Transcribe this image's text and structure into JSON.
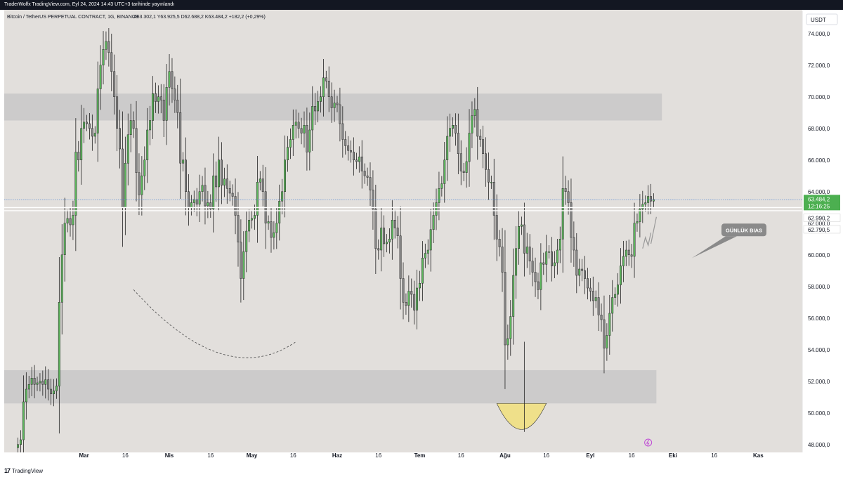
{
  "header": {
    "publish_line": "TraderWolfx TradingView.com, Eyl 24, 2024 14:43 UTC+3 tarihinde yayınlandı",
    "symbol_line": "Bitcoin / TetherUS PERPETUAL CONTRACT, 1G, BINANCE",
    "ohlc": {
      "open": "A63.302,1",
      "high": "Y63.925,5",
      "low": "D62.688,2",
      "close": "K63.484,2",
      "change": "+182,2 (+0,29%)"
    }
  },
  "currency_button": "USDT",
  "price_labels": {
    "last": "63.484,2",
    "countdown": "12:16:25",
    "line1": "62.990,2",
    "line2": "62.790,5"
  },
  "annotation": "GÜNLÜK BIAS",
  "footer": {
    "brand": "TradingView"
  },
  "colors": {
    "background": "#e2dfdc",
    "bull": "#5cb85c",
    "bear": "#888888",
    "zone": "#c8c8c8",
    "last_price": "#4caf50",
    "yellow_zone": "#efe08a"
  },
  "chart_data": {
    "type": "candlestick",
    "title": "Bitcoin / TetherUS PERPETUAL CONTRACT, 1G, BINANCE",
    "timeframe": "1D",
    "ylim": [
      47500,
      75500
    ],
    "y_ticks": [
      "74.000,0",
      "72.000,0",
      "70.000,0",
      "68.000,0",
      "66.000,0",
      "64.000,0",
      "62.000,0",
      "60.000,0",
      "58.000,0",
      "56.000,0",
      "54.000,0",
      "52.000,0",
      "50.000,0",
      "48.000,0"
    ],
    "x_ticks": [
      {
        "label": "Mar",
        "day": 29
      },
      {
        "label": "16",
        "day": 44
      },
      {
        "label": "Nis",
        "day": 60
      },
      {
        "label": "16",
        "day": 75
      },
      {
        "label": "May",
        "day": 90
      },
      {
        "label": "16",
        "day": 105
      },
      {
        "label": "Haz",
        "day": 121
      },
      {
        "label": "16",
        "day": 136
      },
      {
        "label": "Tem",
        "day": 151
      },
      {
        "label": "16",
        "day": 166
      },
      {
        "label": "Ağu",
        "day": 182
      },
      {
        "label": "16",
        "day": 197
      },
      {
        "label": "Eyl",
        "day": 213
      },
      {
        "label": "16",
        "day": 228
      },
      {
        "label": "Eki",
        "day": 243
      },
      {
        "label": "16",
        "day": 258
      },
      {
        "label": "Kas",
        "day": 274
      }
    ],
    "x_range_days": [
      0,
      290
    ],
    "first_day": 5,
    "closes": [
      48000,
      48300,
      50700,
      51500,
      51800,
      52200,
      51800,
      51900,
      52000,
      51800,
      52100,
      51500,
      51200,
      51400,
      51700,
      57000,
      60000,
      62000,
      62300,
      61900,
      62500,
      66500,
      66000,
      68000,
      68400,
      68300,
      68000,
      67500,
      67700,
      70500,
      72000,
      73000,
      73500,
      72800,
      71600,
      70000,
      68000,
      66700,
      63000,
      65800,
      67600,
      68500,
      68000,
      65200,
      63800,
      65000,
      66000,
      67900,
      68500,
      70200,
      69700,
      70000,
      69800,
      68500,
      70600,
      71600,
      70500,
      69800,
      69000,
      65800,
      66000,
      64000,
      63000,
      63300,
      63500,
      63200,
      64000,
      64400,
      63100,
      63300,
      62900,
      65000,
      64300,
      66000,
      64400,
      64800,
      64200,
      63900,
      63700,
      62500,
      60800,
      58500,
      60200,
      61500,
      62200,
      62300,
      62500,
      64600,
      64800,
      64000,
      62000,
      62100,
      61100,
      61400,
      62000,
      63400,
      64000,
      66000,
      66800,
      67300,
      68200,
      68400,
      68000,
      67700,
      68200,
      66500,
      67900,
      69400,
      69100,
      69700,
      70000,
      71200,
      71000,
      70000,
      69300,
      69600,
      69500,
      68300,
      67300,
      66900,
      66600,
      66500,
      66000,
      65900,
      66200,
      65300,
      65000,
      64900,
      64100,
      62900,
      60400,
      60300,
      61700,
      60700,
      60800,
      61000,
      62200,
      61700,
      61200,
      58500,
      57000,
      56800,
      57700,
      57500,
      56500,
      57900,
      58200,
      59800,
      60100,
      60300,
      61600,
      62500,
      63300,
      64200,
      64500,
      66000,
      67500,
      68000,
      68200,
      67700,
      66400,
      65300,
      65200,
      65900,
      67700,
      68800,
      69200,
      67500,
      67300,
      66400,
      65400,
      64600,
      64600,
      62500,
      61000,
      60500,
      58900,
      54300,
      54700,
      56100,
      58700,
      60400,
      61800,
      61900,
      60100,
      60500,
      59600,
      58900,
      58300,
      57800,
      59500,
      59400,
      60200,
      60200,
      59300,
      59500,
      60300,
      61000,
      64200,
      64000,
      63300,
      61100,
      60300,
      58700,
      59100,
      59000,
      58500,
      57900,
      57700,
      57100,
      57300,
      56200,
      55900,
      54100,
      54900,
      56300,
      57300,
      57500,
      58100,
      59300,
      59900,
      60300,
      60000,
      59900,
      62000,
      62100,
      62900,
      63200,
      63300,
      63700,
      63400,
      63500
    ]
  }
}
